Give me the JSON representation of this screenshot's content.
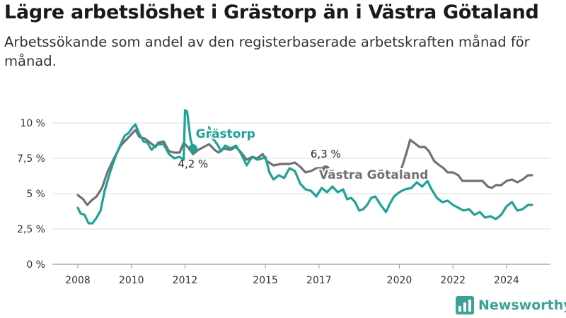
{
  "title": "Lägre arbetslöshet i Grästorp än i Västra Götaland",
  "subtitle": "Arbetssökande som andel av den registerbaserade arbetskraften månad för månad.",
  "brand": {
    "name": "Newsworthy",
    "icon": "bar-chart-icon",
    "color": "#3aa397"
  },
  "chart_data": {
    "type": "line",
    "title": "Lägre arbetslöshet i Grästorp än i Västra Götaland",
    "subtitle": "Arbetssökande som andel av den registerbaserade arbetskraften månad för månad.",
    "xlabel": "",
    "ylabel": "",
    "x_ticks": [
      2008,
      2010,
      2012,
      2015,
      2017,
      2020,
      2022,
      2024
    ],
    "y_ticks": [
      0,
      2.5,
      5,
      7.5,
      10
    ],
    "y_tick_labels": [
      "0 %",
      "2,5 %",
      "5 %",
      "7,5 %",
      "10 %"
    ],
    "xlim": [
      2007.75,
      2025.5
    ],
    "ylim": [
      0,
      11.2
    ],
    "grid": "horizontal",
    "legend": "inline labels",
    "series": [
      {
        "name": "Västra Götaland",
        "color": "#707078",
        "end_label": "6,3 %",
        "points": [
          [
            2008.0,
            4.9
          ],
          [
            2008.2,
            4.6
          ],
          [
            2008.35,
            4.2
          ],
          [
            2008.5,
            4.5
          ],
          [
            2008.7,
            4.8
          ],
          [
            2008.9,
            5.4
          ],
          [
            2009.1,
            6.5
          ],
          [
            2009.35,
            7.5
          ],
          [
            2009.6,
            8.4
          ],
          [
            2009.8,
            8.8
          ],
          [
            2010.0,
            9.2
          ],
          [
            2010.15,
            9.5
          ],
          [
            2010.3,
            9.0
          ],
          [
            2010.5,
            8.9
          ],
          [
            2010.7,
            8.6
          ],
          [
            2010.9,
            8.3
          ],
          [
            2011.0,
            8.6
          ],
          [
            2011.2,
            8.7
          ],
          [
            2011.4,
            8.0
          ],
          [
            2011.6,
            7.9
          ],
          [
            2011.8,
            7.9
          ],
          [
            2011.95,
            8.6
          ],
          [
            2012.1,
            8.3
          ],
          [
            2012.3,
            7.8
          ],
          [
            2012.5,
            8.1
          ],
          [
            2012.7,
            8.3
          ],
          [
            2012.9,
            8.5
          ],
          [
            2013.1,
            8.1
          ],
          [
            2013.25,
            7.9
          ],
          [
            2013.45,
            8.2
          ],
          [
            2013.7,
            8.1
          ],
          [
            2013.9,
            8.3
          ],
          [
            2014.1,
            7.9
          ],
          [
            2014.3,
            7.4
          ],
          [
            2014.5,
            7.6
          ],
          [
            2014.7,
            7.5
          ],
          [
            2014.9,
            7.8
          ],
          [
            2015.05,
            7.3
          ],
          [
            2015.3,
            7.0
          ],
          [
            2015.6,
            7.1
          ],
          [
            2015.9,
            7.1
          ],
          [
            2016.1,
            7.2
          ],
          [
            2016.3,
            6.9
          ],
          [
            2016.5,
            6.5
          ],
          [
            2016.7,
            6.6
          ],
          [
            2016.9,
            6.8
          ],
          [
            2017.1,
            6.8
          ],
          [
            2017.25,
            6.7
          ]
        ]
      },
      {
        "name": "Västra Götaland",
        "color": "#707078",
        "points": [
          [
            2019.85,
            6.4
          ],
          [
            2020.05,
            6.6
          ],
          [
            2020.25,
            7.8
          ],
          [
            2020.4,
            8.8
          ],
          [
            2020.55,
            8.6
          ],
          [
            2020.75,
            8.3
          ],
          [
            2020.95,
            8.3
          ],
          [
            2021.1,
            8.0
          ],
          [
            2021.3,
            7.3
          ],
          [
            2021.5,
            7.0
          ],
          [
            2021.65,
            6.8
          ],
          [
            2021.8,
            6.5
          ],
          [
            2022.0,
            6.5
          ],
          [
            2022.2,
            6.3
          ],
          [
            2022.35,
            5.9
          ],
          [
            2022.6,
            5.9
          ],
          [
            2022.9,
            5.9
          ],
          [
            2023.1,
            5.9
          ],
          [
            2023.3,
            5.5
          ],
          [
            2023.45,
            5.4
          ],
          [
            2023.6,
            5.6
          ],
          [
            2023.8,
            5.6
          ],
          [
            2024.0,
            5.9
          ],
          [
            2024.2,
            6.0
          ],
          [
            2024.4,
            5.8
          ],
          [
            2024.6,
            6.0
          ],
          [
            2024.8,
            6.3
          ],
          [
            2024.95,
            6.3
          ]
        ]
      },
      {
        "name": "Grästorp",
        "color": "#1aa396",
        "end_label": "4,2 %",
        "points": [
          [
            2008.0,
            4.0
          ],
          [
            2008.1,
            3.6
          ],
          [
            2008.25,
            3.5
          ],
          [
            2008.4,
            2.9
          ],
          [
            2008.55,
            2.9
          ],
          [
            2008.7,
            3.3
          ],
          [
            2008.85,
            3.8
          ],
          [
            2009.0,
            5.2
          ],
          [
            2009.2,
            6.5
          ],
          [
            2009.4,
            7.6
          ],
          [
            2009.6,
            8.5
          ],
          [
            2009.75,
            9.1
          ],
          [
            2009.9,
            9.3
          ],
          [
            2010.05,
            9.7
          ],
          [
            2010.15,
            9.9
          ],
          [
            2010.3,
            9.2
          ],
          [
            2010.45,
            8.7
          ],
          [
            2010.6,
            8.6
          ],
          [
            2010.75,
            8.1
          ],
          [
            2010.9,
            8.4
          ],
          [
            2011.05,
            8.5
          ],
          [
            2011.2,
            8.5
          ],
          [
            2011.4,
            7.8
          ],
          [
            2011.6,
            7.5
          ],
          [
            2011.8,
            7.6
          ],
          [
            2011.95,
            7.4
          ],
          [
            2012.0,
            10.9
          ],
          [
            2012.08,
            10.8
          ],
          [
            2012.2,
            8.9
          ],
          [
            2012.3,
            8.2
          ]
        ]
      },
      {
        "name": "Grästorp",
        "color": "#1aa396",
        "points": [
          [
            2012.9,
            9.7
          ],
          [
            2013.0,
            9.0
          ],
          [
            2013.2,
            8.5
          ],
          [
            2013.35,
            8.0
          ],
          [
            2013.5,
            8.4
          ],
          [
            2013.7,
            8.2
          ],
          [
            2013.9,
            8.4
          ],
          [
            2014.1,
            7.8
          ],
          [
            2014.3,
            7.0
          ],
          [
            2014.5,
            7.6
          ],
          [
            2014.7,
            7.4
          ],
          [
            2014.9,
            7.5
          ],
          [
            2015.0,
            7.6
          ],
          [
            2015.15,
            6.5
          ],
          [
            2015.3,
            6.0
          ],
          [
            2015.5,
            6.3
          ],
          [
            2015.7,
            6.1
          ],
          [
            2015.9,
            6.8
          ],
          [
            2016.1,
            6.6
          ],
          [
            2016.3,
            5.7
          ],
          [
            2016.5,
            5.3
          ],
          [
            2016.7,
            5.2
          ],
          [
            2016.9,
            4.8
          ],
          [
            2017.1,
            5.4
          ],
          [
            2017.3,
            5.1
          ],
          [
            2017.5,
            5.5
          ],
          [
            2017.7,
            5.1
          ],
          [
            2017.9,
            5.3
          ],
          [
            2018.05,
            4.6
          ],
          [
            2018.2,
            4.7
          ],
          [
            2018.35,
            4.4
          ],
          [
            2018.5,
            3.8
          ],
          [
            2018.65,
            3.9
          ],
          [
            2018.8,
            4.2
          ],
          [
            2018.95,
            4.7
          ],
          [
            2019.1,
            4.8
          ],
          [
            2019.3,
            4.2
          ],
          [
            2019.5,
            3.7
          ],
          [
            2019.65,
            4.3
          ],
          [
            2019.8,
            4.8
          ],
          [
            2020.0,
            5.1
          ],
          [
            2020.2,
            5.3
          ],
          [
            2020.45,
            5.4
          ],
          [
            2020.65,
            5.8
          ],
          [
            2020.85,
            5.5
          ],
          [
            2021.05,
            5.9
          ],
          [
            2021.2,
            5.3
          ],
          [
            2021.4,
            4.7
          ],
          [
            2021.6,
            4.4
          ],
          [
            2021.8,
            4.5
          ],
          [
            2022.0,
            4.2
          ],
          [
            2022.2,
            4.0
          ],
          [
            2022.4,
            3.8
          ],
          [
            2022.6,
            3.9
          ],
          [
            2022.8,
            3.5
          ],
          [
            2023.0,
            3.7
          ],
          [
            2023.2,
            3.3
          ],
          [
            2023.4,
            3.4
          ],
          [
            2023.6,
            3.2
          ],
          [
            2023.8,
            3.5
          ],
          [
            2024.0,
            4.1
          ],
          [
            2024.2,
            4.4
          ],
          [
            2024.4,
            3.8
          ],
          [
            2024.6,
            3.9
          ],
          [
            2024.8,
            4.2
          ],
          [
            2024.95,
            4.2
          ]
        ]
      }
    ],
    "series_labels": [
      {
        "text": "Grästorp",
        "color": "#1aa396",
        "x": 2012.4,
        "y": 8.95
      },
      {
        "text": "Västra Götaland",
        "color": "#707078",
        "x": 2017.0,
        "y": 6.05
      }
    ]
  }
}
